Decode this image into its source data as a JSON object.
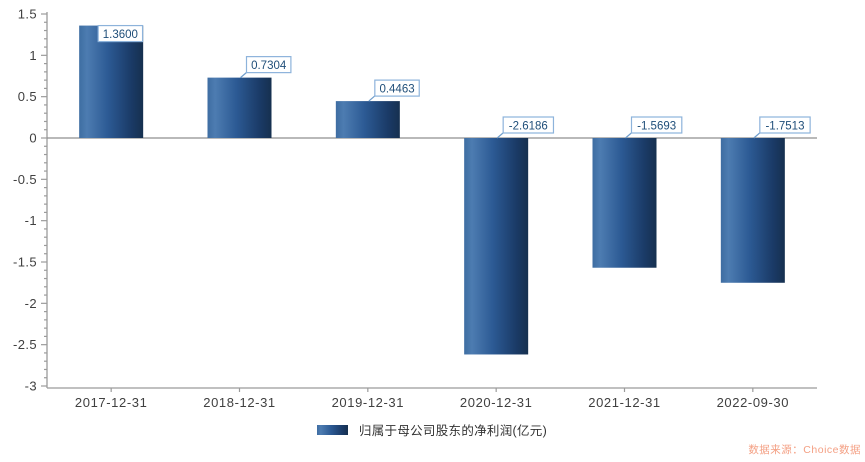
{
  "chart_data": {
    "type": "bar",
    "categories": [
      "2017-12-31",
      "2018-12-31",
      "2019-12-31",
      "2020-12-31",
      "2021-12-31",
      "2022-09-30"
    ],
    "series": [
      {
        "name": "归属于母公司股东的净利润(亿元)",
        "values": [
          1.36,
          0.7304,
          0.4463,
          -2.6186,
          -1.5693,
          -1.7513
        ],
        "data_labels": [
          "1.3600",
          "0.7304",
          "0.4463",
          "-2.6186",
          "-1.5693",
          "-1.7513"
        ]
      }
    ],
    "title": "",
    "xlabel": "",
    "ylabel": "",
    "ylim": [
      -3,
      1.5
    ],
    "y_major_step": 0.5,
    "y_minor_step": 0.1,
    "grid": false,
    "legend_position": "bottom"
  },
  "legend": {
    "label": "归属于母公司股东的净利润(亿元)"
  },
  "source": {
    "label": "数据来源：Choice数据"
  },
  "colors": {
    "bar_gradient": [
      [
        "0%",
        "#3e6da2"
      ],
      [
        "12%",
        "#4d7cb1"
      ],
      [
        "45%",
        "#2c5a94"
      ],
      [
        "82%",
        "#1a3a66"
      ],
      [
        "100%",
        "#16304f"
      ]
    ],
    "axis_line": "#9b9b9b",
    "zero_line": "#8f8f8f",
    "tick_mark": "#9b9b9b",
    "tick_label": "#404040",
    "value_text": "#1f4e79",
    "value_box_border": "#8db3db",
    "value_box_fill": "#ffffff",
    "leader_line": "#6f9dcb",
    "legend_text": "#333333",
    "source_text": "#f4a084"
  }
}
